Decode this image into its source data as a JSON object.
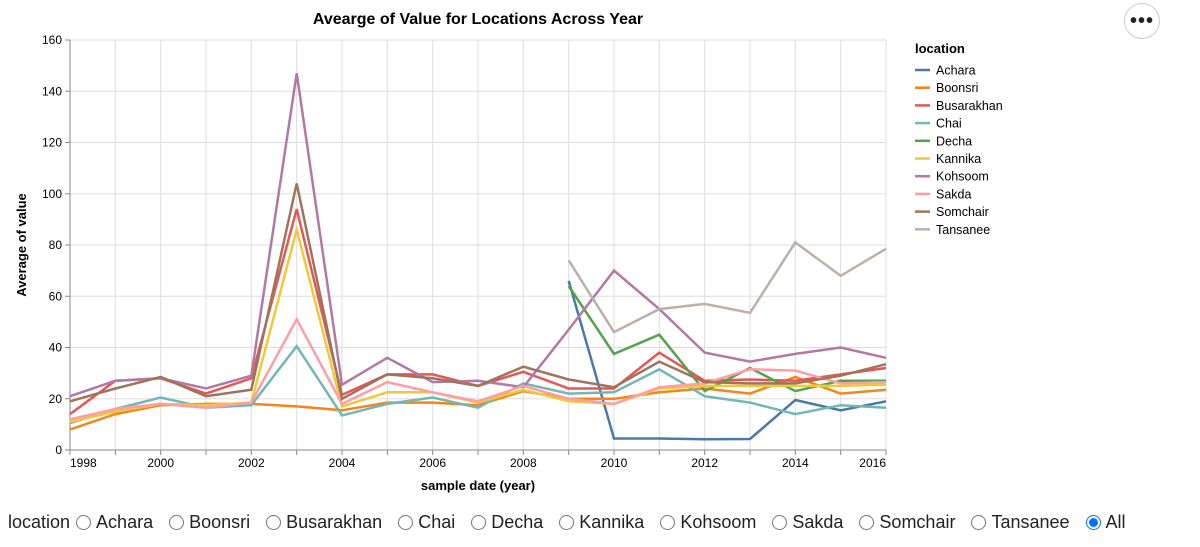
{
  "chart_data": {
    "type": "line",
    "title": "Avearge of Value for Locations Across Year",
    "xlabel": "sample date (year)",
    "ylabel": "Average of value",
    "xlim": [
      1998,
      2016
    ],
    "ylim": [
      0,
      160
    ],
    "xticks": [
      1998,
      2000,
      2002,
      2004,
      2006,
      2008,
      2010,
      2012,
      2014,
      2016
    ],
    "yticks": [
      0,
      20,
      40,
      60,
      80,
      100,
      120,
      140,
      160
    ],
    "grid": true,
    "legend_title": "location",
    "legend_position": "right",
    "x": [
      1998,
      1999,
      2000,
      2001,
      2002,
      2003,
      2004,
      2005,
      2006,
      2007,
      2008,
      2009,
      2010,
      2011,
      2012,
      2013,
      2014,
      2015,
      2016
    ],
    "series": [
      {
        "name": "Achara",
        "color": "#4c78a8",
        "values": [
          null,
          null,
          null,
          null,
          null,
          null,
          null,
          null,
          null,
          null,
          null,
          66,
          4.5,
          4.5,
          4.2,
          4.3,
          19.5,
          15.5,
          19
        ]
      },
      {
        "name": "Boonsri",
        "color": "#f58518",
        "values": [
          8,
          14,
          17.5,
          18,
          18,
          17,
          15.5,
          18.5,
          18.5,
          17.5,
          23,
          20,
          20,
          22.5,
          24,
          22,
          28.5,
          22,
          23.5
        ]
      },
      {
        "name": "Busarakhan",
        "color": "#e45756",
        "values": [
          14,
          27,
          28,
          22,
          28,
          94,
          21.5,
          29.5,
          29.5,
          25,
          30.5,
          24,
          24,
          38,
          27,
          27.5,
          27,
          29.5,
          32
        ]
      },
      {
        "name": "Chai",
        "color": "#72b7b2",
        "values": [
          10.5,
          16,
          20.5,
          16.5,
          17.5,
          40.5,
          13.5,
          18,
          20.5,
          16.5,
          26,
          22,
          22.5,
          31.5,
          21,
          18.5,
          14,
          17.5,
          16.5
        ]
      },
      {
        "name": "Decha",
        "color": "#54a24b",
        "values": [
          null,
          null,
          null,
          null,
          null,
          null,
          null,
          null,
          null,
          null,
          null,
          64,
          37.5,
          45,
          23,
          32,
          23,
          27,
          27
        ]
      },
      {
        "name": "Kannika",
        "color": "#eeca3b",
        "values": [
          11,
          15,
          18,
          17.5,
          18.5,
          86,
          17,
          22.5,
          22.5,
          18.5,
          23.5,
          19,
          18,
          24,
          25,
          25,
          25,
          25,
          25.5
        ]
      },
      {
        "name": "Kohsoom",
        "color": "#b279a2",
        "values": [
          21,
          27,
          28,
          24,
          29,
          147,
          25.5,
          36,
          26.5,
          27,
          24.5,
          47,
          70,
          55,
          38,
          34.5,
          37.5,
          40,
          36
        ]
      },
      {
        "name": "Sakda",
        "color": "#ff9da6",
        "values": [
          12,
          16,
          18,
          16.5,
          18.5,
          51,
          18,
          26.5,
          22.5,
          19,
          25,
          20,
          18,
          24.5,
          26,
          31.5,
          31,
          26,
          26.5
        ]
      },
      {
        "name": "Somchair",
        "color": "#9d755d",
        "values": [
          19,
          24,
          28.5,
          21,
          23.5,
          104,
          20,
          29.5,
          28,
          25,
          32.5,
          27.5,
          24.5,
          34.5,
          26.5,
          26,
          26,
          29,
          33.5
        ]
      },
      {
        "name": "Tansanee",
        "color": "#bab0ac",
        "values": [
          null,
          null,
          null,
          null,
          null,
          null,
          null,
          null,
          null,
          null,
          null,
          74,
          46,
          55,
          57,
          53.5,
          81,
          68,
          78.5
        ]
      }
    ]
  },
  "menu_label": "•••",
  "filter": {
    "label": "location",
    "options": [
      "Achara",
      "Boonsri",
      "Busarakhan",
      "Chai",
      "Decha",
      "Kannika",
      "Kohsoom",
      "Sakda",
      "Somchair",
      "Tansanee",
      "All"
    ],
    "selected": "All"
  }
}
